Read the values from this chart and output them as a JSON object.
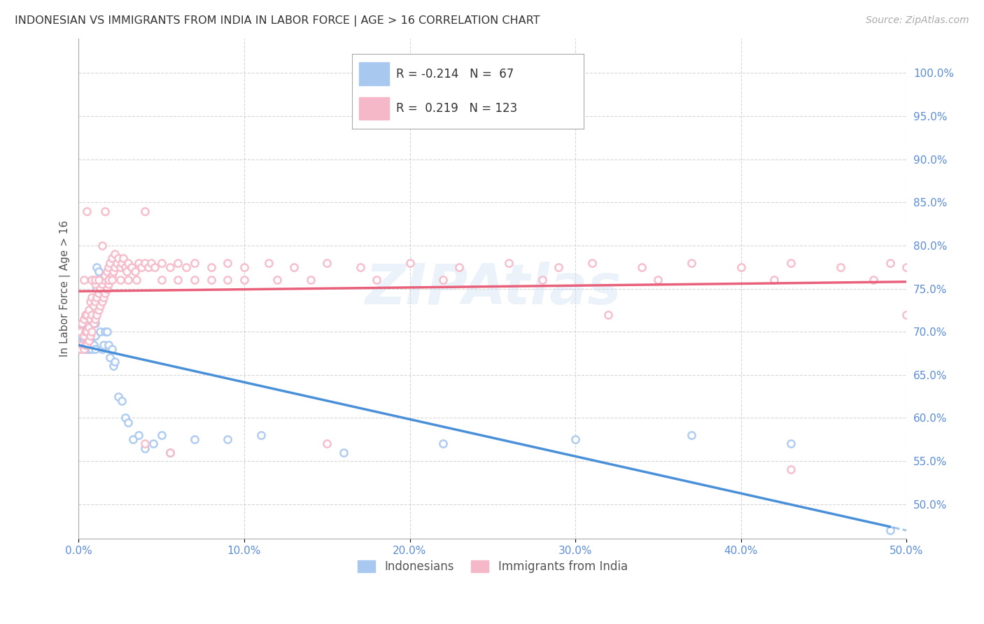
{
  "title": "INDONESIAN VS IMMIGRANTS FROM INDIA IN LABOR FORCE | AGE > 16 CORRELATION CHART",
  "source": "Source: ZipAtlas.com",
  "ylabel": "In Labor Force | Age > 16",
  "xlim": [
    0.0,
    0.5
  ],
  "ylim": [
    0.46,
    1.04
  ],
  "yticks": [
    0.5,
    0.55,
    0.6,
    0.65,
    0.7,
    0.75,
    0.8,
    0.85,
    0.9,
    0.95,
    1.0
  ],
  "ytick_labels": [
    "50.0%",
    "55.0%",
    "60.0%",
    "65.0%",
    "70.0%",
    "75.0%",
    "80.0%",
    "85.0%",
    "90.0%",
    "95.0%",
    "100.0%"
  ],
  "xticks": [
    0.0,
    0.1,
    0.2,
    0.3,
    0.4,
    0.5
  ],
  "xtick_labels": [
    "0.0%",
    "10.0%",
    "20.0%",
    "30.0%",
    "40.0%",
    "50.0%"
  ],
  "blue_color": "#a8c8f0",
  "pink_color": "#f5b8c8",
  "blue_line_color": "#4a90d9",
  "pink_line_color": "#e8607a",
  "legend_R_blue": "-0.214",
  "legend_N_blue": "67",
  "legend_R_pink": "0.219",
  "legend_N_pink": "123",
  "watermark": "ZIPAtlas",
  "blue_label": "Indonesians",
  "pink_label": "Immigrants from India",
  "blue_points_x": [
    0.001,
    0.001,
    0.002,
    0.002,
    0.002,
    0.003,
    0.003,
    0.003,
    0.003,
    0.004,
    0.004,
    0.004,
    0.004,
    0.005,
    0.005,
    0.005,
    0.005,
    0.006,
    0.006,
    0.006,
    0.006,
    0.007,
    0.007,
    0.007,
    0.008,
    0.008,
    0.008,
    0.009,
    0.009,
    0.009,
    0.01,
    0.01,
    0.01,
    0.011,
    0.011,
    0.012,
    0.012,
    0.013,
    0.013,
    0.014,
    0.015,
    0.016,
    0.017,
    0.018,
    0.019,
    0.02,
    0.021,
    0.022,
    0.024,
    0.026,
    0.028,
    0.03,
    0.033,
    0.036,
    0.04,
    0.045,
    0.05,
    0.055,
    0.07,
    0.09,
    0.11,
    0.16,
    0.22,
    0.3,
    0.37,
    0.43,
    0.49
  ],
  "blue_points_y": [
    0.695,
    0.7,
    0.685,
    0.695,
    0.71,
    0.68,
    0.69,
    0.7,
    0.71,
    0.685,
    0.695,
    0.7,
    0.715,
    0.68,
    0.69,
    0.7,
    0.71,
    0.68,
    0.695,
    0.7,
    0.72,
    0.69,
    0.7,
    0.715,
    0.68,
    0.695,
    0.71,
    0.685,
    0.695,
    0.71,
    0.68,
    0.695,
    0.71,
    0.75,
    0.775,
    0.77,
    0.76,
    0.75,
    0.7,
    0.68,
    0.685,
    0.7,
    0.7,
    0.685,
    0.67,
    0.68,
    0.66,
    0.665,
    0.625,
    0.62,
    0.6,
    0.595,
    0.575,
    0.58,
    0.565,
    0.57,
    0.58,
    0.56,
    0.575,
    0.575,
    0.58,
    0.56,
    0.57,
    0.575,
    0.58,
    0.57,
    0.47
  ],
  "pink_points_x": [
    0.001,
    0.001,
    0.002,
    0.002,
    0.003,
    0.003,
    0.003,
    0.004,
    0.004,
    0.004,
    0.005,
    0.005,
    0.005,
    0.006,
    0.006,
    0.006,
    0.007,
    0.007,
    0.007,
    0.008,
    0.008,
    0.008,
    0.009,
    0.009,
    0.01,
    0.01,
    0.01,
    0.011,
    0.011,
    0.012,
    0.012,
    0.013,
    0.013,
    0.014,
    0.014,
    0.015,
    0.015,
    0.016,
    0.016,
    0.017,
    0.017,
    0.018,
    0.018,
    0.019,
    0.019,
    0.02,
    0.02,
    0.021,
    0.022,
    0.022,
    0.023,
    0.024,
    0.025,
    0.026,
    0.027,
    0.028,
    0.029,
    0.03,
    0.032,
    0.034,
    0.036,
    0.038,
    0.04,
    0.042,
    0.044,
    0.046,
    0.05,
    0.055,
    0.06,
    0.065,
    0.07,
    0.08,
    0.09,
    0.1,
    0.115,
    0.13,
    0.15,
    0.17,
    0.2,
    0.23,
    0.26,
    0.29,
    0.31,
    0.34,
    0.37,
    0.4,
    0.43,
    0.46,
    0.49,
    0.5,
    0.003,
    0.005,
    0.008,
    0.01,
    0.012,
    0.014,
    0.016,
    0.018,
    0.02,
    0.025,
    0.03,
    0.035,
    0.04,
    0.05,
    0.06,
    0.07,
    0.08,
    0.09,
    0.1,
    0.12,
    0.14,
    0.18,
    0.22,
    0.28,
    0.35,
    0.42,
    0.48,
    0.04,
    0.055,
    0.15,
    0.32,
    0.43,
    0.5
  ],
  "pink_points_y": [
    0.68,
    0.7,
    0.685,
    0.71,
    0.68,
    0.695,
    0.715,
    0.685,
    0.7,
    0.72,
    0.685,
    0.7,
    0.72,
    0.69,
    0.705,
    0.725,
    0.695,
    0.715,
    0.735,
    0.7,
    0.72,
    0.74,
    0.71,
    0.73,
    0.715,
    0.735,
    0.755,
    0.72,
    0.74,
    0.725,
    0.745,
    0.73,
    0.75,
    0.735,
    0.755,
    0.74,
    0.76,
    0.745,
    0.765,
    0.75,
    0.77,
    0.755,
    0.775,
    0.76,
    0.78,
    0.765,
    0.785,
    0.77,
    0.775,
    0.79,
    0.78,
    0.785,
    0.775,
    0.78,
    0.785,
    0.775,
    0.77,
    0.78,
    0.775,
    0.77,
    0.78,
    0.775,
    0.78,
    0.775,
    0.78,
    0.775,
    0.78,
    0.775,
    0.78,
    0.775,
    0.78,
    0.775,
    0.78,
    0.775,
    0.78,
    0.775,
    0.78,
    0.775,
    0.78,
    0.775,
    0.78,
    0.775,
    0.78,
    0.775,
    0.78,
    0.775,
    0.78,
    0.775,
    0.78,
    0.775,
    0.76,
    0.84,
    0.76,
    0.76,
    0.76,
    0.8,
    0.84,
    0.76,
    0.76,
    0.76,
    0.76,
    0.76,
    0.84,
    0.76,
    0.76,
    0.76,
    0.76,
    0.76,
    0.76,
    0.76,
    0.76,
    0.76,
    0.76,
    0.76,
    0.76,
    0.76,
    0.76,
    0.57,
    0.56,
    0.57,
    0.72,
    0.54,
    0.72
  ]
}
